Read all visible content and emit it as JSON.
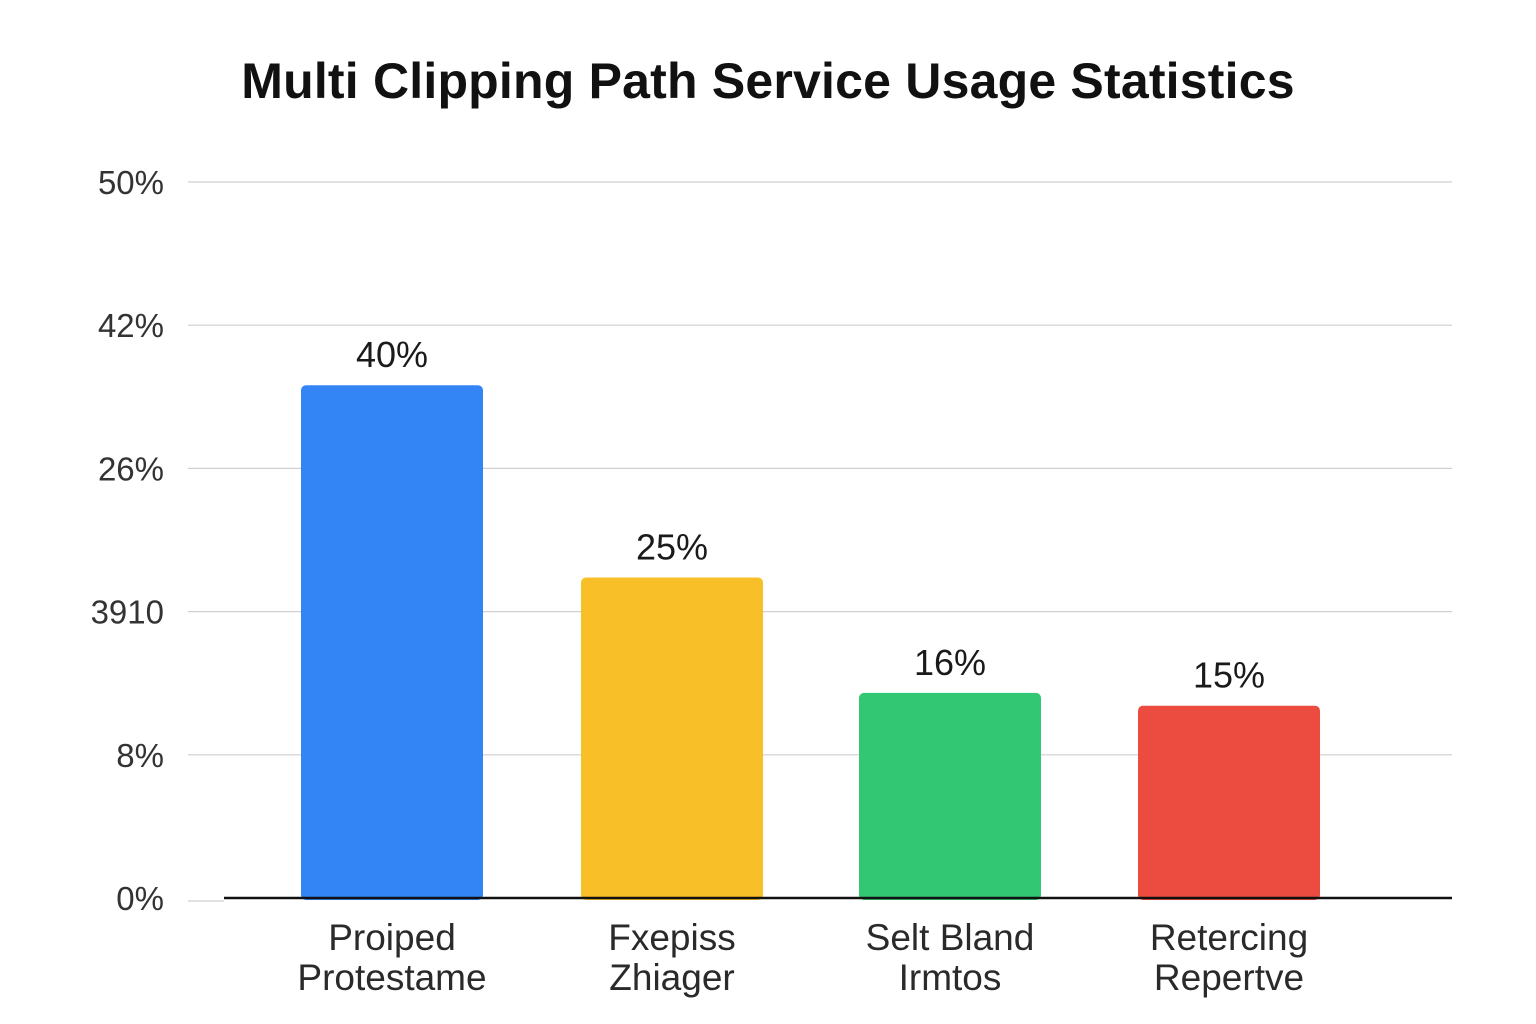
{
  "chart_data": {
    "type": "bar",
    "title": "Multi Clipping Path Service Usage Statistics",
    "xlabel": "",
    "ylabel": "",
    "y_ticks": [
      "0%",
      "8%",
      "3910",
      "26%",
      "42%",
      "50%"
    ],
    "ylim": [
      0,
      50
    ],
    "grid": true,
    "legend": "none",
    "categories": [
      [
        "Proiped",
        "Protestame"
      ],
      [
        "Fxepiss",
        "Zhiager"
      ],
      [
        "Selt Bland",
        "Irmtos"
      ],
      [
        "Retercing",
        "Repertve"
      ]
    ],
    "values": [
      40,
      25,
      16,
      15
    ],
    "value_labels": [
      "40%",
      "25%",
      "16%",
      "15%"
    ],
    "colors": [
      "#3385f5",
      "#f8bf28",
      "#32c873",
      "#ec4c40"
    ]
  }
}
